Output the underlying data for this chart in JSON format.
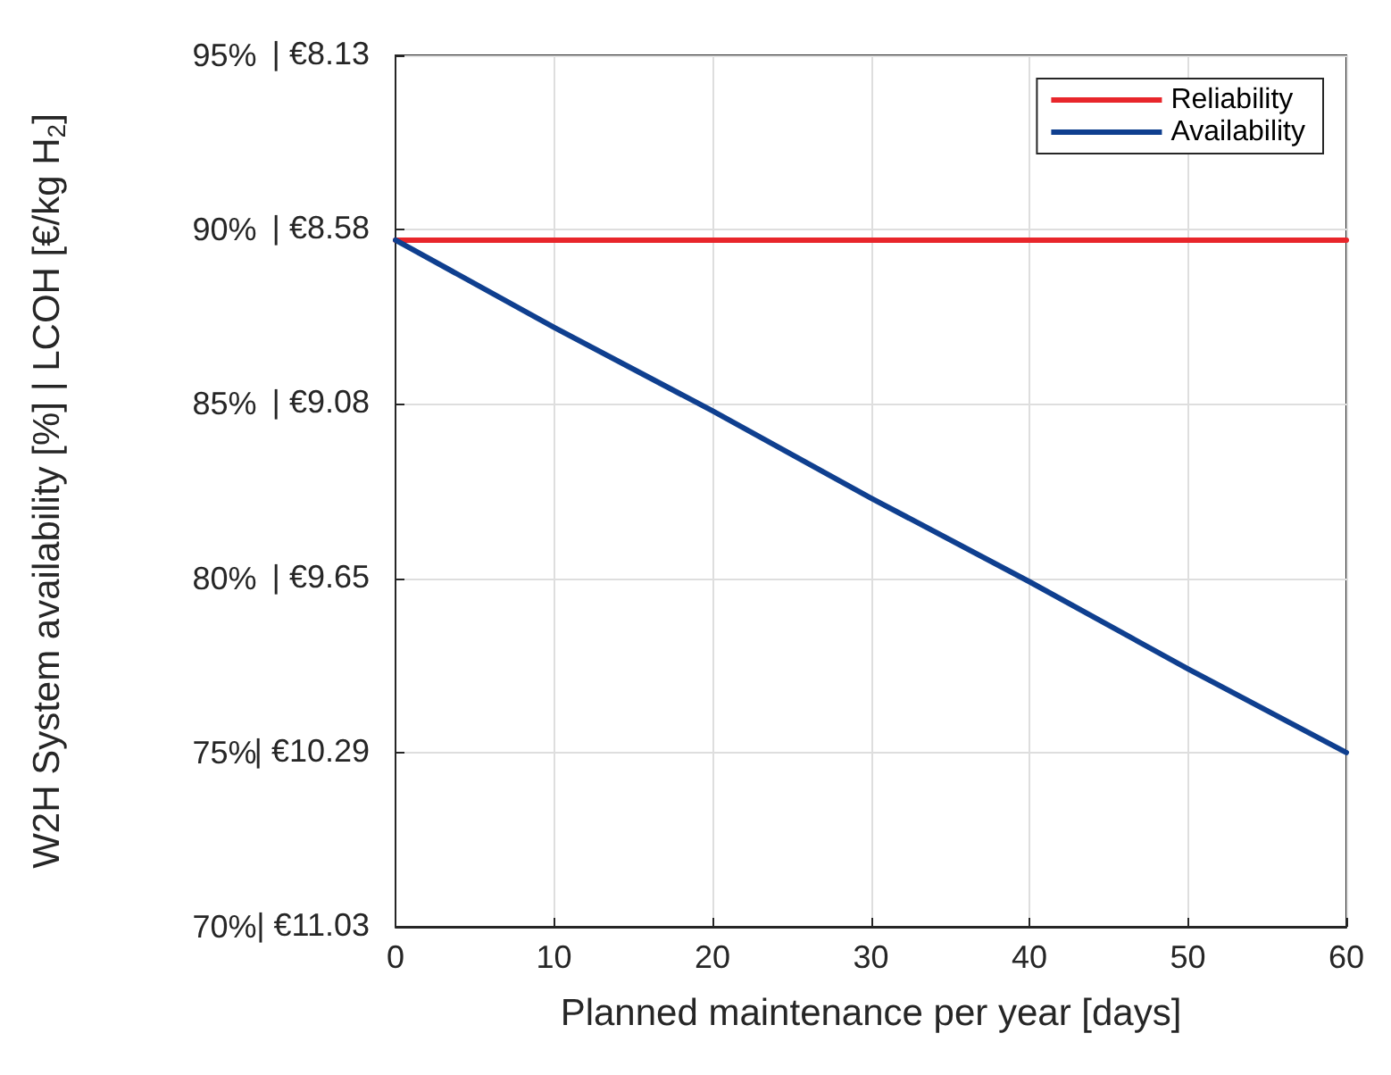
{
  "chart_data": {
    "type": "line",
    "xlabel": "Planned maintenance per year [days]",
    "ylabel": "W2H System availability [%] | LCOH [€/kg H$_{2}$]",
    "x": [
      0,
      10,
      20,
      30,
      40,
      50,
      60
    ],
    "series": [
      {
        "name": "Reliability",
        "color": "#e8262b",
        "values": [
          89.7,
          89.7,
          89.7,
          89.7,
          89.7,
          89.7,
          89.7
        ]
      },
      {
        "name": "Availability",
        "color": "#0f3f8f",
        "values": [
          89.7,
          87.2,
          84.8,
          82.3,
          79.9,
          77.4,
          75.0
        ]
      }
    ],
    "xlim": [
      0,
      60
    ],
    "xticks": [
      0,
      10,
      20,
      30,
      40,
      50,
      60
    ],
    "ylim": [
      70,
      95
    ],
    "yticks": [
      {
        "value": 70,
        "label": "70%"
      },
      {
        "value": 75,
        "label": "75%"
      },
      {
        "value": 80,
        "label": "80%"
      },
      {
        "value": 85,
        "label": "85%"
      },
      {
        "value": 90,
        "label": "90%"
      },
      {
        "value": 95,
        "label": "95%"
      }
    ],
    "annotations": [
      "| €11.03",
      "| €10.29",
      "| €9.65",
      "| €9.08",
      "| €8.58",
      "| €8.13"
    ],
    "grid": true,
    "legend": "top right",
    "marker": "none",
    "line_style": "solid"
  }
}
